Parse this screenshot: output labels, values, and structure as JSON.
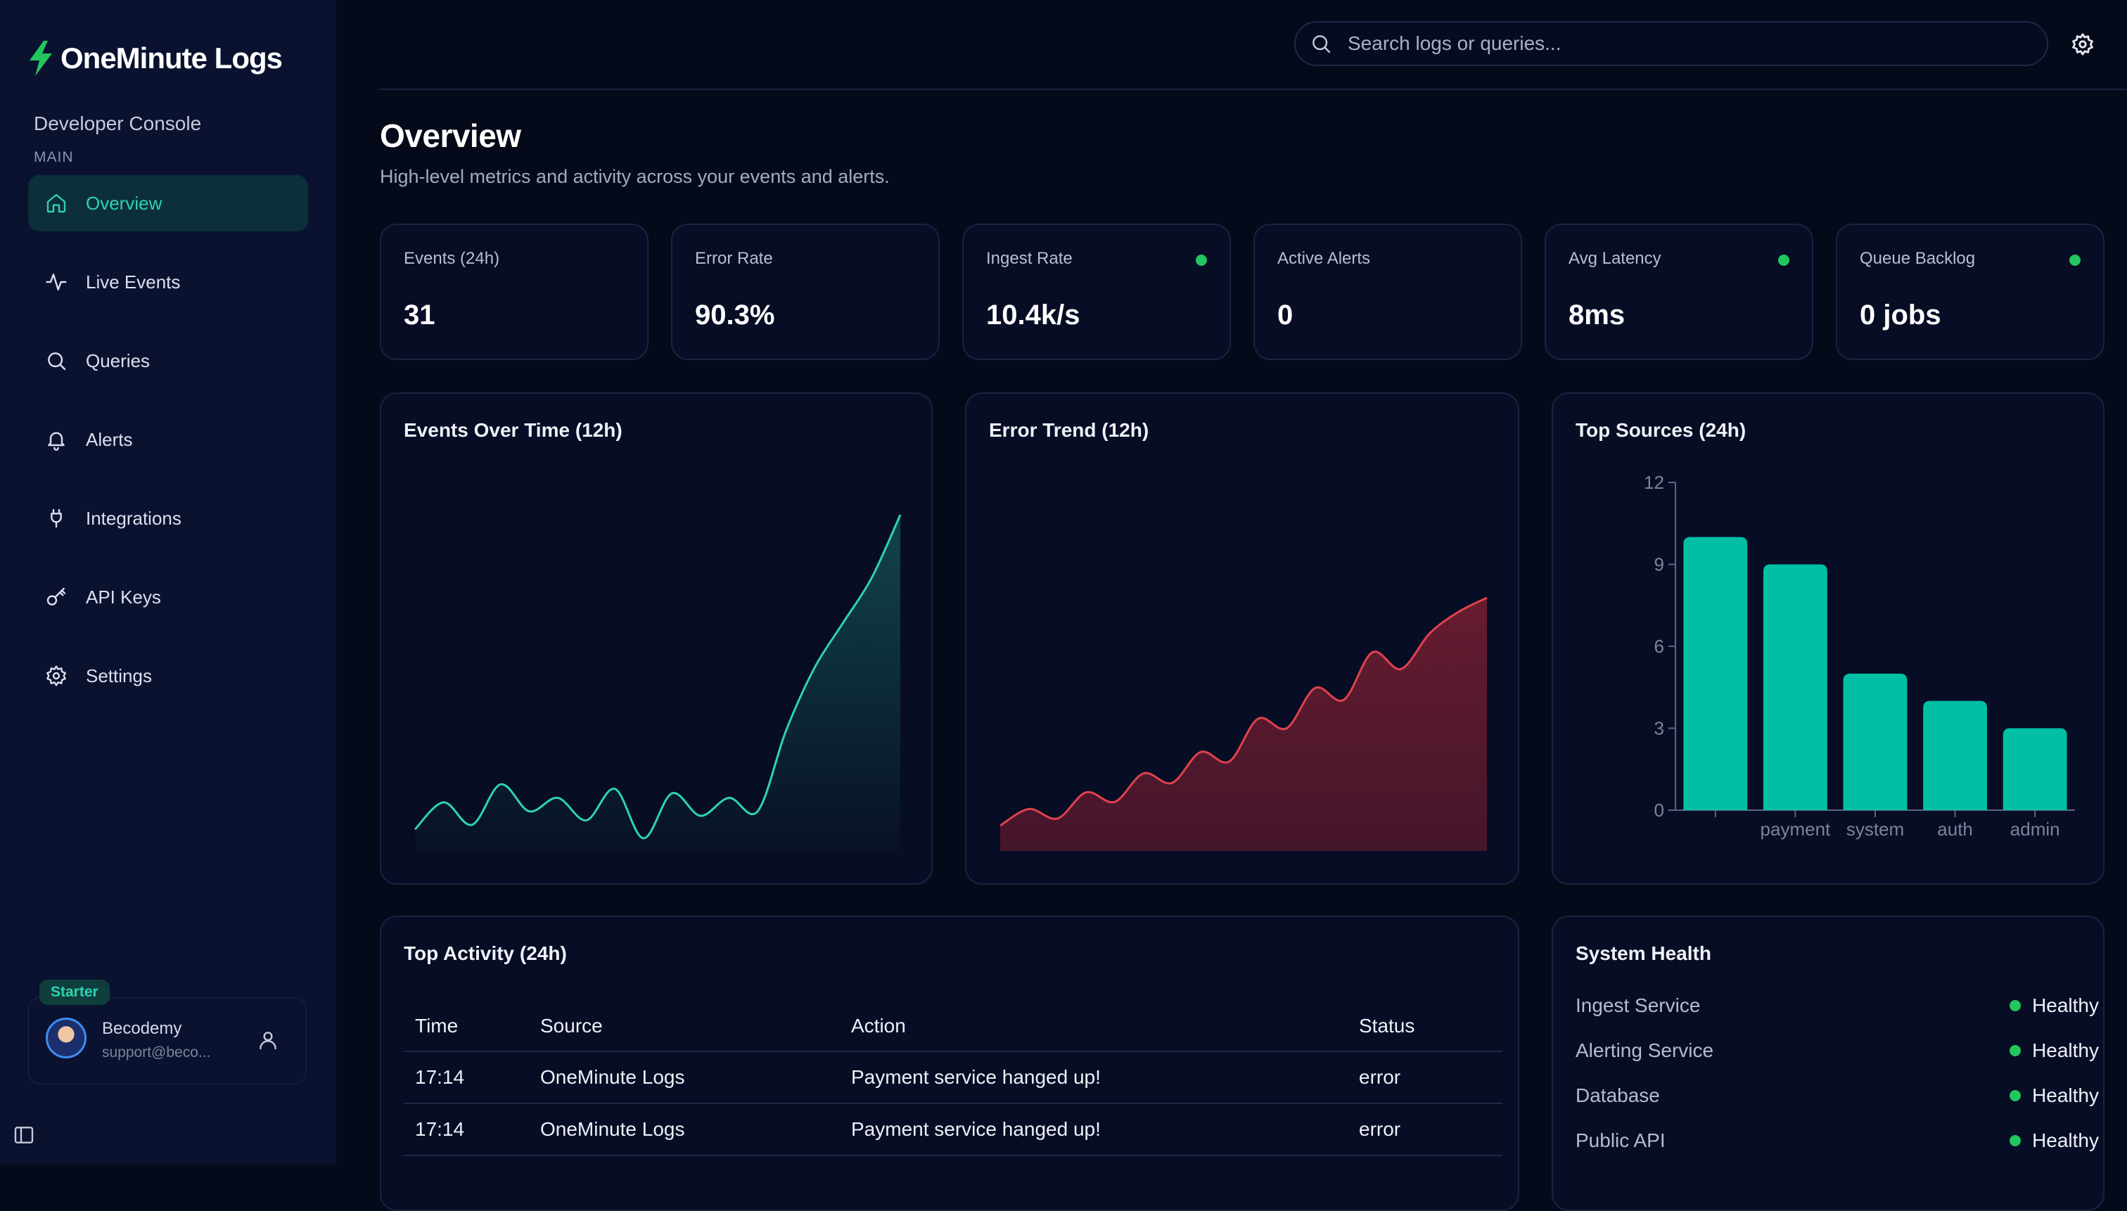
{
  "brand": {
    "name": "OneMinute Logs"
  },
  "sidebar": {
    "console_label": "Developer Console",
    "section_label": "MAIN",
    "items": [
      {
        "label": "Overview",
        "icon": "home-icon",
        "active": true
      },
      {
        "label": "Live Events",
        "icon": "activity-icon",
        "active": false
      },
      {
        "label": "Queries",
        "icon": "search-icon",
        "active": false
      },
      {
        "label": "Alerts",
        "icon": "bell-icon",
        "active": false
      },
      {
        "label": "Integrations",
        "icon": "plug-icon",
        "active": false
      },
      {
        "label": "API Keys",
        "icon": "key-icon",
        "active": false
      },
      {
        "label": "Settings",
        "icon": "gear-icon",
        "active": false
      }
    ],
    "user": {
      "plan": "Starter",
      "name": "Becodemy",
      "email": "support@beco..."
    }
  },
  "search": {
    "placeholder": "Search logs or queries..."
  },
  "page": {
    "title": "Overview",
    "subtitle": "High-level metrics and activity across your events and alerts."
  },
  "metrics": [
    {
      "label": "Events (24h)",
      "value": "31",
      "status_dot": false
    },
    {
      "label": "Error Rate",
      "value": "90.3%",
      "status_dot": false
    },
    {
      "label": "Ingest Rate",
      "value": "10.4k/s",
      "status_dot": true
    },
    {
      "label": "Active Alerts",
      "value": "0",
      "status_dot": false
    },
    {
      "label": "Avg Latency",
      "value": "8ms",
      "status_dot": true
    },
    {
      "label": "Queue Backlog",
      "value": "0 jobs",
      "status_dot": true
    }
  ],
  "colors": {
    "accent": "#2ed3b2",
    "bar": "#00bfa5",
    "error": "#ef4444",
    "healthy": "#22c55e"
  },
  "chart_data": [
    {
      "type": "area",
      "title": "Events Over Time (12h)",
      "x": [
        0,
        1,
        2,
        3,
        4,
        5,
        6,
        7,
        8,
        9,
        10,
        11,
        12,
        13,
        14,
        15,
        16,
        17
      ],
      "values": [
        2,
        8,
        3,
        12,
        6,
        9,
        4,
        11,
        0,
        10,
        5,
        9,
        6,
        24,
        38,
        48,
        58,
        72
      ]
    },
    {
      "type": "area",
      "title": "Error Trend (12h)",
      "x": [
        0,
        1,
        2,
        3,
        4,
        5,
        6,
        7,
        8,
        9,
        10,
        11,
        12,
        13,
        14,
        15,
        16,
        17
      ],
      "values": [
        2,
        9,
        5,
        16,
        12,
        24,
        20,
        33,
        29,
        47,
        43,
        60,
        55,
        75,
        68,
        83,
        92,
        98
      ]
    },
    {
      "type": "bar",
      "title": "Top Sources (24h)",
      "categories": [
        "",
        "payment",
        "system",
        "auth",
        "admin"
      ],
      "values": [
        10,
        9,
        5,
        4,
        3
      ],
      "yticks": [
        "0",
        "3",
        "6",
        "9",
        "12"
      ],
      "ylim": [
        0,
        12
      ]
    }
  ],
  "activity": {
    "title": "Top Activity (24h)",
    "columns": [
      "Time",
      "Source",
      "Action",
      "Status"
    ],
    "rows": [
      [
        "17:14",
        "OneMinute Logs",
        "Payment service hanged up!",
        "error"
      ],
      [
        "17:14",
        "OneMinute Logs",
        "Payment service hanged up!",
        "error"
      ]
    ]
  },
  "health": {
    "title": "System Health",
    "items": [
      {
        "name": "Ingest Service",
        "status": "Healthy"
      },
      {
        "name": "Alerting Service",
        "status": "Healthy"
      },
      {
        "name": "Database",
        "status": "Healthy"
      },
      {
        "name": "Public API",
        "status": "Healthy"
      }
    ]
  }
}
